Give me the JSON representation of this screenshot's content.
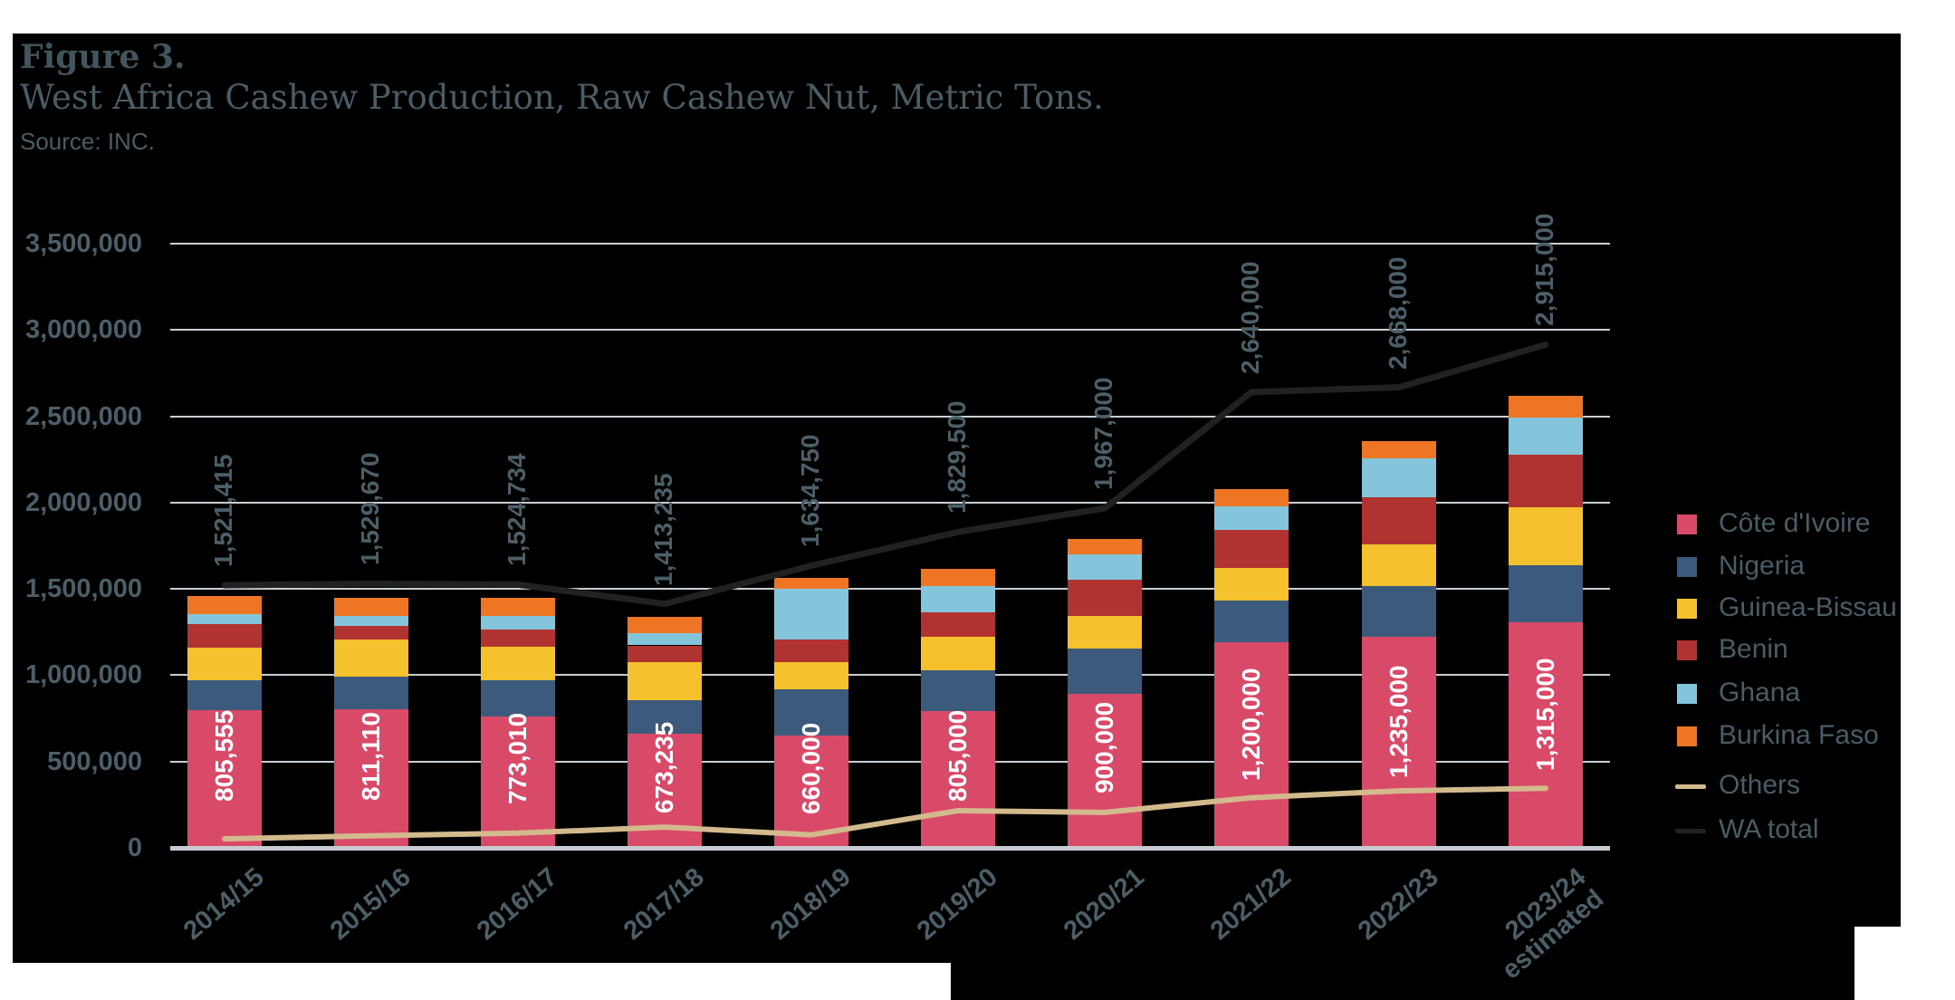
{
  "header": {
    "figure_label": "Figure 3.",
    "title": "West Africa Cashew Production, Raw Cashew Nut, Metric Tons.",
    "source": "Source: INC."
  },
  "chart_data": {
    "type": "bar",
    "variant": "stacked-bars-with-line-overlay",
    "title": "West Africa Cashew Production, Raw Cashew Nut, Metric Tons.",
    "categories": [
      "2014/15",
      "2015/16",
      "2016/17",
      "2017/18",
      "2018/19",
      "2019/20",
      "2020/21",
      "2021/22",
      "2022/23",
      "2023/24 estimated"
    ],
    "x_tick_lines": [
      [
        "2014/15"
      ],
      [
        "2015/16"
      ],
      [
        "2016/17"
      ],
      [
        "2017/18"
      ],
      [
        "2018/19"
      ],
      [
        "2019/20"
      ],
      [
        "2020/21"
      ],
      [
        "2021/22"
      ],
      [
        "2022/23"
      ],
      [
        "2023/24",
        "estimated"
      ]
    ],
    "ylim": [
      0,
      3500000
    ],
    "y_tick_step": 500000,
    "y_tick_labels": [
      "0",
      "500,000",
      "1,000,000",
      "1,500,000",
      "2,000,000",
      "2,500,000",
      "3,000,000",
      "3,500,000"
    ],
    "grid": true,
    "legend_position": "right",
    "stacked_series": [
      {
        "name": "Côte d'Ivoire",
        "color": "#d94a68",
        "values": [
          805555,
          811110,
          773010,
          673235,
          660000,
          805000,
          900000,
          1200000,
          1235000,
          1315000
        ],
        "labels": [
          "805,555",
          "811,110",
          "773,010",
          "673,235",
          "660,000",
          "805,000",
          "900,000",
          "1,200,000",
          "1,235,000",
          "1,315,000"
        ]
      },
      {
        "name": "Nigeria",
        "color": "#3c5a7c",
        "values": [
          175000,
          190000,
          210000,
          190000,
          270000,
          235000,
          265000,
          245000,
          290000,
          333000
        ]
      },
      {
        "name": "Guinea-Bissau",
        "color": "#f5c12d",
        "values": [
          190000,
          215000,
          190000,
          225000,
          155000,
          195000,
          190000,
          185000,
          245000,
          335000
        ]
      },
      {
        "name": "Benin",
        "color": "#b03331",
        "values": [
          135000,
          80000,
          100000,
          95000,
          130000,
          140000,
          210000,
          220000,
          270000,
          305000
        ]
      },
      {
        "name": "Ghana",
        "color": "#85c5dc",
        "values": [
          58000,
          60000,
          80000,
          70000,
          295000,
          150000,
          145000,
          140000,
          225000,
          215000
        ]
      },
      {
        "name": "Burkina Faso",
        "color": "#ee7524",
        "values": [
          105000,
          105000,
          105000,
          95000,
          65000,
          100000,
          90000,
          100000,
          100000,
          125000
        ]
      }
    ],
    "line_series": [
      {
        "name": "Others",
        "color": "#d3ba8d",
        "stroke": 6,
        "values": [
          52000,
          70000,
          85000,
          120000,
          75000,
          215000,
          205000,
          290000,
          330000,
          345000
        ]
      },
      {
        "name": "WA total",
        "color": "#1f2123",
        "stroke": 7,
        "values": [
          1521415,
          1529670,
          1524734,
          1413235,
          1634750,
          1829500,
          1967000,
          2640000,
          2668000,
          2915000
        ],
        "labels": [
          "1,521,415",
          "1,529,670",
          "1,524,734",
          "1,413,235",
          "1,634,750",
          "1,829,500",
          "1,967,000",
          "2,640,000",
          "2,668,000",
          "2,915,000"
        ]
      }
    ]
  },
  "legend": {
    "items": [
      {
        "label": "Côte d'Ivoire",
        "color": "#d94a68",
        "swatch": "square"
      },
      {
        "label": "Nigeria",
        "color": "#3c5a7c",
        "swatch": "square"
      },
      {
        "label": "Guinea-Bissau",
        "color": "#f5c12d",
        "swatch": "square"
      },
      {
        "label": "Benin",
        "color": "#b03331",
        "swatch": "square"
      },
      {
        "label": "Ghana",
        "color": "#85c5dc",
        "swatch": "square"
      },
      {
        "label": "Burkina Faso",
        "color": "#ee7524",
        "swatch": "square"
      },
      {
        "label": "Others",
        "color": "#d3ba8d",
        "swatch": "line"
      },
      {
        "label": "WA total",
        "color": "#1f2123",
        "swatch": "line"
      }
    ]
  },
  "colors": {
    "canvas": "#000000",
    "page": "#ffffff",
    "grid": "#c8ced2",
    "axis": "#c5cdd2",
    "text": "#4a5c66",
    "bar_label_text": "#ffffff"
  }
}
